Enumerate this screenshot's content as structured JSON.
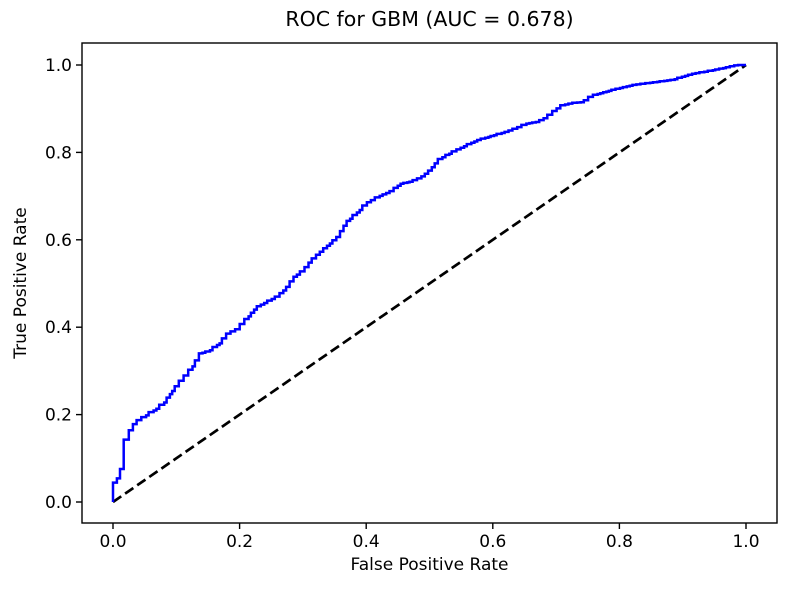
{
  "chart_data": {
    "type": "line",
    "title": "ROC for GBM (AUC = 0.678)",
    "xlabel": "False Positive Rate",
    "ylabel": "True Positive Rate",
    "auc_shown_in_title": 0.678,
    "x_ticks": [
      "0.0",
      "0.2",
      "0.4",
      "0.6",
      "0.8",
      "1.0"
    ],
    "y_ticks": [
      "0.0",
      "0.2",
      "0.4",
      "0.6",
      "0.8",
      "1.0"
    ],
    "xlim": [
      -0.05,
      1.05
    ],
    "ylim": [
      -0.05,
      1.05
    ],
    "grid": false,
    "legend": null,
    "background_color": "#ffffff",
    "series": [
      {
        "name": "roc-curve",
        "style": "step-solid",
        "color": "#0000ff",
        "line_width": 2.5,
        "points": [
          [
            0.0,
            0.0
          ],
          [
            0.002,
            0.02
          ],
          [
            0.004,
            0.04
          ],
          [
            0.008,
            0.048
          ],
          [
            0.013,
            0.058
          ],
          [
            0.018,
            0.08
          ],
          [
            0.021,
            0.1
          ],
          [
            0.023,
            0.13
          ],
          [
            0.026,
            0.15
          ],
          [
            0.03,
            0.16
          ],
          [
            0.035,
            0.175
          ],
          [
            0.042,
            0.185
          ],
          [
            0.05,
            0.192
          ],
          [
            0.06,
            0.202
          ],
          [
            0.075,
            0.215
          ],
          [
            0.085,
            0.228
          ],
          [
            0.095,
            0.25
          ],
          [
            0.11,
            0.275
          ],
          [
            0.122,
            0.295
          ],
          [
            0.135,
            0.322
          ],
          [
            0.141,
            0.34
          ],
          [
            0.155,
            0.345
          ],
          [
            0.172,
            0.363
          ],
          [
            0.185,
            0.385
          ],
          [
            0.2,
            0.395
          ],
          [
            0.215,
            0.42
          ],
          [
            0.23,
            0.445
          ],
          [
            0.247,
            0.458
          ],
          [
            0.263,
            0.47
          ],
          [
            0.278,
            0.49
          ],
          [
            0.29,
            0.515
          ],
          [
            0.305,
            0.53
          ],
          [
            0.315,
            0.55
          ],
          [
            0.33,
            0.57
          ],
          [
            0.347,
            0.592
          ],
          [
            0.358,
            0.605
          ],
          [
            0.365,
            0.622
          ],
          [
            0.372,
            0.64
          ],
          [
            0.388,
            0.66
          ],
          [
            0.405,
            0.684
          ],
          [
            0.425,
            0.7
          ],
          [
            0.442,
            0.71
          ],
          [
            0.458,
            0.728
          ],
          [
            0.474,
            0.733
          ],
          [
            0.49,
            0.742
          ],
          [
            0.505,
            0.76
          ],
          [
            0.517,
            0.782
          ],
          [
            0.532,
            0.795
          ],
          [
            0.548,
            0.806
          ],
          [
            0.563,
            0.817
          ],
          [
            0.58,
            0.828
          ],
          [
            0.596,
            0.835
          ],
          [
            0.625,
            0.847
          ],
          [
            0.642,
            0.856
          ],
          [
            0.658,
            0.866
          ],
          [
            0.675,
            0.87
          ],
          [
            0.69,
            0.881
          ],
          [
            0.698,
            0.892
          ],
          [
            0.714,
            0.908
          ],
          [
            0.73,
            0.913
          ],
          [
            0.746,
            0.915
          ],
          [
            0.761,
            0.93
          ],
          [
            0.793,
            0.943
          ],
          [
            0.825,
            0.954
          ],
          [
            0.856,
            0.96
          ],
          [
            0.888,
            0.966
          ],
          [
            0.92,
            0.98
          ],
          [
            0.945,
            0.986
          ],
          [
            0.975,
            0.995
          ],
          [
            0.99,
            1.0
          ],
          [
            1.0,
            1.0
          ]
        ]
      },
      {
        "name": "chance-diagonal",
        "style": "dashed",
        "color": "#000000",
        "line_width": 2.7,
        "points": [
          [
            0,
            0
          ],
          [
            1,
            1
          ]
        ]
      }
    ]
  }
}
